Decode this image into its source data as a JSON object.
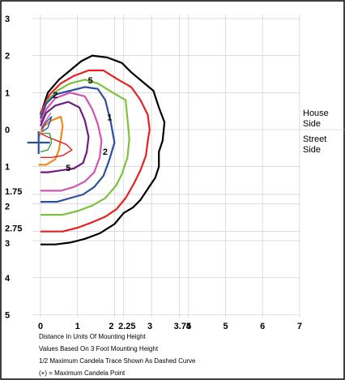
{
  "chart_data": {
    "type": "line",
    "title": "",
    "xlabel": "",
    "ylabel": "",
    "x_ticks": [
      "0",
      "1",
      "2",
      "2.25",
      "3",
      "3.75",
      "4",
      "5",
      "6",
      "7"
    ],
    "y_ticks_upper": [
      "3",
      "2",
      "1",
      "0"
    ],
    "y_ticks_lower": [
      "1",
      "1.75",
      "2",
      "2.75",
      "3",
      "4",
      "5"
    ],
    "xlim": [
      -0.1,
      7
    ],
    "ylim": [
      -5,
      3.3
    ],
    "grid": true,
    "side_labels": {
      "house": [
        "House",
        "Side"
      ],
      "street": [
        "Street",
        "Side"
      ]
    },
    "notes": [
      "Distance In Units Of Mounting Height",
      "Values Based On 3 Foot Mounting Height",
      "1/2 Maximum Candela Trace Shown As Dashed Curve",
      "(+) = Maximum Candela Point"
    ],
    "max_candela_point": [
      -0.05,
      -0.35
    ],
    "contour_labels": [
      {
        "text": "5",
        "x": 1.35,
        "y": 1.25
      },
      {
        "text": "2",
        "x": 0.4,
        "y": 0.85
      },
      {
        "text": "1",
        "x": 1.87,
        "y": 0.25
      },
      {
        "text": "2",
        "x": 1.75,
        "y": -0.68
      },
      {
        "text": "5",
        "x": 0.75,
        "y": -1.12
      }
    ],
    "series": [
      {
        "color": "#000000",
        "points": [
          [
            0,
            0.4
          ],
          [
            0.2,
            1.0
          ],
          [
            0.5,
            1.35
          ],
          [
            0.8,
            1.6
          ],
          [
            1.1,
            1.85
          ],
          [
            1.4,
            2.0
          ],
          [
            1.8,
            1.95
          ],
          [
            2.2,
            1.8
          ],
          [
            2.45,
            1.55
          ],
          [
            3.05,
            1.05
          ],
          [
            3.2,
            0.6
          ],
          [
            3.35,
            0.2
          ],
          [
            3.3,
            -0.3
          ],
          [
            3.2,
            -0.6
          ],
          [
            3.2,
            -1.0
          ],
          [
            3.1,
            -1.3
          ],
          [
            2.9,
            -1.6
          ],
          [
            2.7,
            -1.9
          ],
          [
            2.5,
            -2.1
          ],
          [
            2.25,
            -2.25
          ],
          [
            2.0,
            -2.55
          ],
          [
            1.6,
            -2.8
          ],
          [
            1.2,
            -2.95
          ],
          [
            0.8,
            -3.05
          ],
          [
            0.4,
            -3.1
          ],
          [
            0,
            -3.1
          ]
        ]
      },
      {
        "color": "#e82020",
        "points": [
          [
            0,
            0.45
          ],
          [
            0.25,
            0.95
          ],
          [
            0.55,
            1.25
          ],
          [
            0.9,
            1.45
          ],
          [
            1.3,
            1.6
          ],
          [
            1.7,
            1.6
          ],
          [
            2.1,
            1.35
          ],
          [
            2.45,
            1.15
          ],
          [
            2.7,
            0.8
          ],
          [
            2.9,
            0.4
          ],
          [
            2.95,
            0.0
          ],
          [
            2.9,
            -0.3
          ],
          [
            2.85,
            -0.7
          ],
          [
            2.7,
            -1.1
          ],
          [
            2.5,
            -1.5
          ],
          [
            2.3,
            -1.85
          ],
          [
            2.05,
            -2.15
          ],
          [
            1.75,
            -2.35
          ],
          [
            1.4,
            -2.5
          ],
          [
            1.0,
            -2.65
          ],
          [
            0.6,
            -2.75
          ],
          [
            0.3,
            -2.75
          ],
          [
            0,
            -2.75
          ]
        ]
      },
      {
        "color": "#7cc23c",
        "points": [
          [
            0,
            0.35
          ],
          [
            0.2,
            0.8
          ],
          [
            0.45,
            1.05
          ],
          [
            0.8,
            1.25
          ],
          [
            1.2,
            1.35
          ],
          [
            1.55,
            1.25
          ],
          [
            1.95,
            1.0
          ],
          [
            2.3,
            0.8
          ],
          [
            2.35,
            0.3
          ],
          [
            2.4,
            -0.25
          ],
          [
            2.35,
            -0.75
          ],
          [
            2.2,
            -1.2
          ],
          [
            2.05,
            -1.5
          ],
          [
            1.75,
            -1.85
          ],
          [
            1.4,
            -2.05
          ],
          [
            1.0,
            -2.2
          ],
          [
            0.6,
            -2.3
          ],
          [
            0.3,
            -2.3
          ],
          [
            0,
            -2.3
          ]
        ]
      },
      {
        "color": "#2a4fa0",
        "points": [
          [
            0,
            0.3
          ],
          [
            0.15,
            0.7
          ],
          [
            0.4,
            0.95
          ],
          [
            0.8,
            1.05
          ],
          [
            1.2,
            1.15
          ],
          [
            1.55,
            1.1
          ],
          [
            1.75,
            0.8
          ],
          [
            1.9,
            0.2
          ],
          [
            2.0,
            -0.35
          ],
          [
            1.85,
            -0.85
          ],
          [
            1.7,
            -1.25
          ],
          [
            1.45,
            -1.55
          ],
          [
            1.15,
            -1.75
          ],
          [
            0.8,
            -1.85
          ],
          [
            0.45,
            -1.95
          ],
          [
            0,
            -1.95
          ]
        ]
      },
      {
        "color": "#d254b0",
        "points": [
          [
            0,
            0.2
          ],
          [
            0.15,
            0.55
          ],
          [
            0.4,
            0.85
          ],
          [
            0.8,
            1.0
          ],
          [
            1.2,
            0.9
          ],
          [
            1.4,
            0.55
          ],
          [
            1.55,
            0.15
          ],
          [
            1.65,
            -0.3
          ],
          [
            1.6,
            -0.75
          ],
          [
            1.45,
            -1.15
          ],
          [
            1.2,
            -1.4
          ],
          [
            0.9,
            -1.55
          ],
          [
            0.55,
            -1.65
          ],
          [
            0.2,
            -1.65
          ],
          [
            0,
            -1.65
          ]
        ]
      },
      {
        "color": "#6e1e82",
        "points": [
          [
            0,
            0.1
          ],
          [
            0.15,
            0.45
          ],
          [
            0.4,
            0.65
          ],
          [
            0.75,
            0.75
          ],
          [
            1.05,
            0.6
          ],
          [
            1.2,
            0.25
          ],
          [
            1.3,
            -0.2
          ],
          [
            1.25,
            -0.6
          ],
          [
            1.15,
            -0.9
          ],
          [
            0.9,
            -1.05
          ],
          [
            0.55,
            -1.1
          ],
          [
            0.2,
            -1.15
          ],
          [
            0,
            -1.15
          ]
        ]
      },
      {
        "color": "#f08a1a",
        "points": [
          [
            -0.05,
            -0.2
          ],
          [
            0.1,
            0.1
          ],
          [
            0.3,
            0.25
          ],
          [
            0.55,
            0.35
          ],
          [
            0.6,
            0.1
          ],
          [
            0.55,
            -0.25
          ],
          [
            0.5,
            -0.55
          ],
          [
            0.4,
            -0.8
          ],
          [
            0.15,
            -0.95
          ],
          [
            -0.05,
            -0.95
          ]
        ]
      },
      {
        "color": "#e82020",
        "points": [
          [
            0,
            -0.1
          ],
          [
            0.2,
            -0.2
          ],
          [
            0.45,
            -0.3
          ],
          [
            0.7,
            -0.4
          ],
          [
            0.85,
            -0.55
          ],
          [
            0.6,
            -0.7
          ],
          [
            0.3,
            -0.75
          ],
          [
            0,
            -0.75
          ]
        ]
      },
      {
        "color": "#3aa040",
        "points": [
          [
            0.05,
            -0.1
          ],
          [
            0.25,
            -0.1
          ],
          [
            0.3,
            -0.35
          ],
          [
            0.2,
            -0.55
          ],
          [
            0,
            -0.6
          ]
        ]
      },
      {
        "color": "#2a4fa0",
        "points": [
          [
            0.02,
            0.0
          ],
          [
            0.15,
            0.2
          ],
          [
            0.3,
            0.35
          ],
          [
            0.2,
            0.05
          ],
          [
            0.05,
            -0.05
          ]
        ]
      },
      {
        "color": "#d254b0",
        "points": [
          [
            0.02,
            0.05
          ],
          [
            0.18,
            0.3
          ],
          [
            0.28,
            0.45
          ]
        ]
      }
    ]
  }
}
